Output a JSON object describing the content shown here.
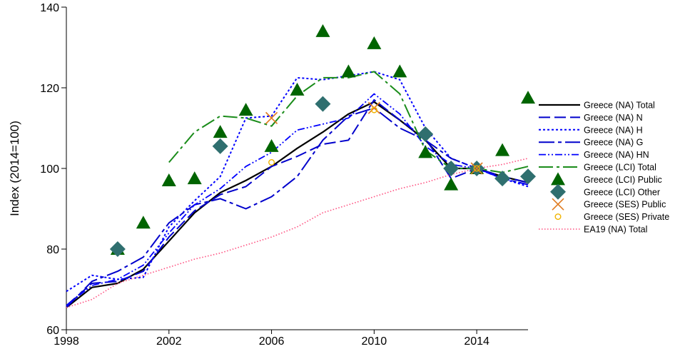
{
  "chart_data": {
    "type": "line",
    "title": "",
    "xlabel": "",
    "ylabel": "Index (2014=100)",
    "xlim": [
      1998,
      2016
    ],
    "ylim": [
      60,
      140
    ],
    "x_ticks": [
      1998,
      2002,
      2006,
      2010,
      2014
    ],
    "y_ticks": [
      60,
      80,
      100,
      120,
      140
    ],
    "grid": false,
    "legend_position": "right",
    "series": [
      {
        "name": "Greece (NA) Total",
        "kind": "line",
        "color": "#000000",
        "dash": "",
        "width": 2.2,
        "x": [
          1998,
          1999,
          2000,
          2001,
          2002,
          2003,
          2004,
          2005,
          2006,
          2007,
          2008,
          2009,
          2010,
          2011,
          2012,
          2013,
          2014,
          2015,
          2016
        ],
        "y": [
          65.5,
          70.5,
          71.5,
          75,
          82,
          89,
          94,
          97,
          100.5,
          105,
          109,
          113.5,
          116.5,
          112,
          107,
          100,
          100,
          98,
          96.5
        ]
      },
      {
        "name": "Greece (NA) N",
        "kind": "line",
        "color": "#0000cc",
        "dash": "16 6",
        "width": 2,
        "x": [
          1998,
          1999,
          2000,
          2001,
          2002,
          2003,
          2004,
          2005,
          2006,
          2007,
          2008,
          2009,
          2010,
          2011,
          2012,
          2013,
          2014,
          2015,
          2016
        ],
        "y": [
          66,
          71.5,
          72,
          74.5,
          83,
          89.5,
          93.5,
          95.5,
          100.5,
          103,
          106,
          107,
          117,
          112,
          107.5,
          97.5,
          100,
          98,
          96.5
        ]
      },
      {
        "name": "Greece (NA) H",
        "kind": "line",
        "color": "#0000ff",
        "dash": "3 3",
        "width": 2,
        "x": [
          1998,
          1999,
          2000,
          2001,
          2002,
          2003,
          2004,
          2005,
          2006,
          2007,
          2008,
          2009,
          2010,
          2011,
          2012,
          2013,
          2014,
          2015,
          2016
        ],
        "y": [
          69.5,
          73.5,
          72.5,
          73,
          85.5,
          92,
          98,
          112.5,
          113,
          122.5,
          122,
          123,
          124,
          122,
          110,
          102.5,
          100,
          97.5,
          95.5
        ]
      },
      {
        "name": "Greece (NA) G",
        "kind": "line",
        "color": "#0000cc",
        "dash": "22 5 5 5",
        "width": 2,
        "x": [
          1998,
          1999,
          2000,
          2001,
          2002,
          2003,
          2004,
          2005,
          2006,
          2007,
          2008,
          2009,
          2010,
          2011,
          2012,
          2013,
          2014,
          2015,
          2016
        ],
        "y": [
          65.5,
          72,
          74.5,
          78,
          86.5,
          91,
          92.5,
          90,
          93,
          98,
          107,
          113,
          115,
          110,
          107,
          102.5,
          100,
          97.5,
          96
        ]
      },
      {
        "name": "Greece (NA) HN",
        "kind": "line",
        "color": "#0000ff",
        "dash": "10 3 2 3 2 3",
        "width": 1.8,
        "x": [
          1998,
          1999,
          2000,
          2001,
          2002,
          2003,
          2004,
          2005,
          2006,
          2007,
          2008,
          2009,
          2010,
          2011,
          2012,
          2013,
          2014,
          2015,
          2016
        ],
        "y": [
          66,
          71,
          72.5,
          76,
          84,
          91,
          95,
          100.5,
          104,
          109.5,
          111,
          112.5,
          118.5,
          113.5,
          105.5,
          101,
          100,
          97.5,
          96
        ]
      },
      {
        "name": "Greece (LCI) Total",
        "kind": "line",
        "color": "#1a8c1a",
        "dash": "20 5 4 5",
        "width": 2,
        "x": [
          2002,
          2003,
          2004,
          2005,
          2006,
          2007,
          2008,
          2009,
          2010,
          2011,
          2012,
          2013,
          2014,
          2015,
          2016
        ],
        "y": [
          101.5,
          109,
          113,
          112.5,
          110.5,
          118,
          122.5,
          122.5,
          124,
          118.5,
          104.5,
          100,
          100,
          99,
          100.5
        ]
      },
      {
        "name": "Greece (LCI) Public",
        "kind": "triangle",
        "color": "#006400",
        "x": [
          2000,
          2001,
          2002,
          2003,
          2004,
          2005,
          2006,
          2007,
          2008,
          2009,
          2010,
          2011,
          2012,
          2013,
          2014,
          2015,
          2016
        ],
        "y": [
          80,
          86.5,
          97,
          97.5,
          109,
          114.5,
          105.5,
          119.5,
          134,
          124,
          131,
          124,
          104,
          96,
          100,
          104.5,
          117.5
        ]
      },
      {
        "name": "Greece (LCI) Other",
        "kind": "diamond",
        "color": "#2f6f6f",
        "x": [
          2000,
          2004,
          2008,
          2012,
          2013,
          2014,
          2015,
          2016
        ],
        "y": [
          80,
          105.5,
          116,
          108.5,
          100,
          100,
          97.5,
          98
        ]
      },
      {
        "name": "Greece (SES) Public",
        "kind": "cross",
        "color": "#e07b20",
        "x": [
          2006,
          2010,
          2014
        ],
        "y": [
          112.5,
          115,
          100
        ]
      },
      {
        "name": "Greece (SES) Private",
        "kind": "circle",
        "color": "#f0b400",
        "x": [
          2006,
          2010,
          2014
        ],
        "y": [
          101.5,
          114.5,
          100
        ]
      },
      {
        "name": "EA19 (NA) Total",
        "kind": "line",
        "color": "#ff5080",
        "dash": "1.5 2.5",
        "width": 1.6,
        "x": [
          1998,
          1999,
          2000,
          2001,
          2002,
          2003,
          2004,
          2005,
          2006,
          2007,
          2008,
          2009,
          2010,
          2011,
          2012,
          2013,
          2014,
          2015,
          2016
        ],
        "y": [
          65.5,
          67.5,
          71.5,
          73.5,
          75.5,
          77.5,
          79,
          81,
          83,
          85.5,
          89,
          91,
          93,
          95,
          96.5,
          98.5,
          100,
          101,
          102.5
        ]
      }
    ]
  }
}
